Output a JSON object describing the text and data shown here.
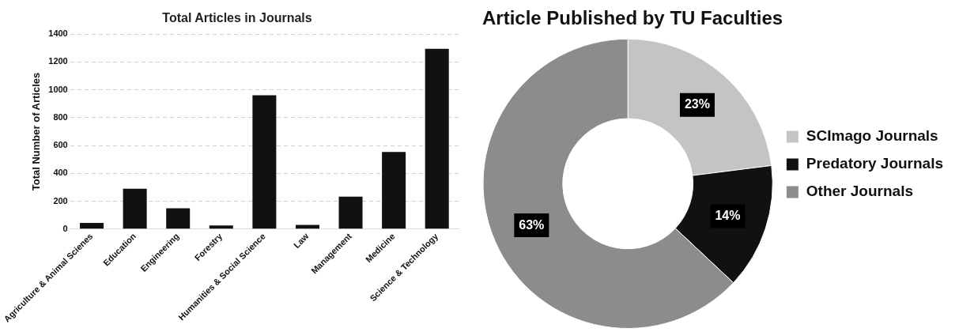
{
  "chart_data": [
    {
      "type": "bar",
      "title": "Total Articles in Journals",
      "ylabel": "Total Number of Articles",
      "categories": [
        "Agriculture & Animal Scienes",
        "Education",
        "Engineering",
        "Forestry",
        "Humanities & Social Science",
        "Law",
        "Management",
        "Medicine",
        "Science & Technology"
      ],
      "values": [
        44,
        289,
        149,
        26,
        961,
        30,
        233,
        553,
        1295
      ],
      "color": "#111111",
      "ylim": [
        0,
        1400
      ],
      "yticks": [
        0,
        200,
        400,
        600,
        800,
        1000,
        1200,
        1400
      ],
      "grid": "y"
    },
    {
      "type": "donut",
      "title": "Article Published by TU Faculties",
      "categories": [
        "SCImago Journals",
        "Predatory Journals",
        "Other Journals"
      ],
      "values": [
        23,
        14,
        63
      ],
      "colors": [
        "#c4c4c4",
        "#111111",
        "#8c8c8c"
      ],
      "legend": "right",
      "value_labels": [
        "23%",
        "14%",
        "63%"
      ]
    }
  ]
}
